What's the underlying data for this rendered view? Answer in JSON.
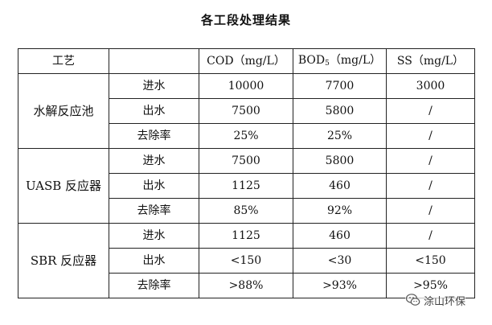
{
  "title": "各工段处理结果",
  "header": {
    "process": "工艺",
    "blank": "",
    "cod": "COD（mg/L）",
    "bod_prefix": "BOD",
    "bod_sub": "5",
    "bod_suffix": "（mg/L）",
    "ss": "SS（mg/L）"
  },
  "groups": [
    {
      "name": "水解反应池",
      "rows": [
        {
          "label": "进水",
          "cod": "10000",
          "bod": "7700",
          "ss": "3000"
        },
        {
          "label": "出水",
          "cod": "7500",
          "bod": "5800",
          "ss": "/"
        },
        {
          "label": "去除率",
          "cod": "25%",
          "bod": "25%",
          "ss": "/"
        }
      ]
    },
    {
      "name": "UASB 反应器",
      "rows": [
        {
          "label": "进水",
          "cod": "7500",
          "bod": "5800",
          "ss": "/"
        },
        {
          "label": "出水",
          "cod": "1125",
          "bod": "460",
          "ss": "/"
        },
        {
          "label": "去除率",
          "cod": "85%",
          "bod": "92%",
          "ss": "/"
        }
      ]
    },
    {
      "name": "SBR 反应器",
      "rows": [
        {
          "label": "进水",
          "cod": "1125",
          "bod": "460",
          "ss": "/"
        },
        {
          "label": "出水",
          "cod": "<150",
          "bod": "<30",
          "ss": "<150"
        },
        {
          "label": "去除率",
          "cod": ">88%",
          "bod": ">93%",
          "ss": ">95%"
        }
      ]
    }
  ],
  "watermark": {
    "text": "涂山环保",
    "icon": "wechat-icon",
    "color": "#444444"
  }
}
